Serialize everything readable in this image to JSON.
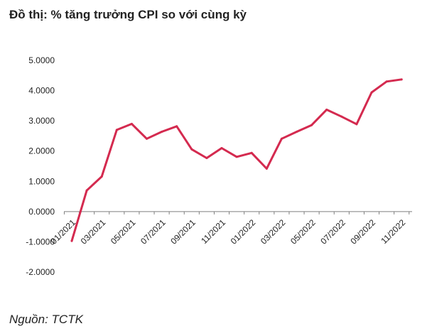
{
  "title": "Đồ thị: % tăng trưởng CPI so với cùng kỳ",
  "source": "Nguồn: TCTK",
  "colors": {
    "line": "#d42a4f",
    "axis": "#7f7f7f"
  },
  "chart_data": {
    "type": "line",
    "title": "Đồ thị: % tăng trưởng CPI so với cùng kỳ",
    "xlabel": "",
    "ylabel": "",
    "ylim": [
      -2,
      5
    ],
    "grid": false,
    "yticks": [
      5,
      4,
      3,
      2,
      1,
      0,
      -1,
      -2
    ],
    "ytick_labels": [
      "5.0000",
      "4.0000",
      "3.0000",
      "2.0000",
      "1.0000",
      "0.0000",
      "-1.0000",
      "-2.0000"
    ],
    "x": [
      "01/2021",
      "02/2021",
      "03/2021",
      "04/2021",
      "05/2021",
      "06/2021",
      "07/2021",
      "08/2021",
      "09/2021",
      "10/2021",
      "11/2021",
      "12/2021",
      "01/2022",
      "02/2022",
      "03/2022",
      "04/2022",
      "05/2022",
      "06/2022",
      "07/2022",
      "08/2022",
      "09/2022",
      "10/2022",
      "11/2022",
      "12/2022"
    ],
    "xtick_labels": [
      "01/2021",
      "03/2021",
      "05/2021",
      "07/2021",
      "09/2021",
      "11/2021",
      "01/2022",
      "03/2022",
      "05/2022",
      "07/2022",
      "09/2022",
      "11/2022"
    ],
    "series": [
      {
        "values": [
          -0.97,
          0.7,
          1.16,
          2.7,
          2.9,
          2.41,
          2.64,
          2.82,
          2.06,
          1.77,
          2.1,
          1.81,
          1.94,
          1.42,
          2.41,
          2.64,
          2.86,
          3.37,
          3.14,
          2.89,
          3.94,
          4.3,
          4.37,
          null
        ]
      }
    ]
  }
}
